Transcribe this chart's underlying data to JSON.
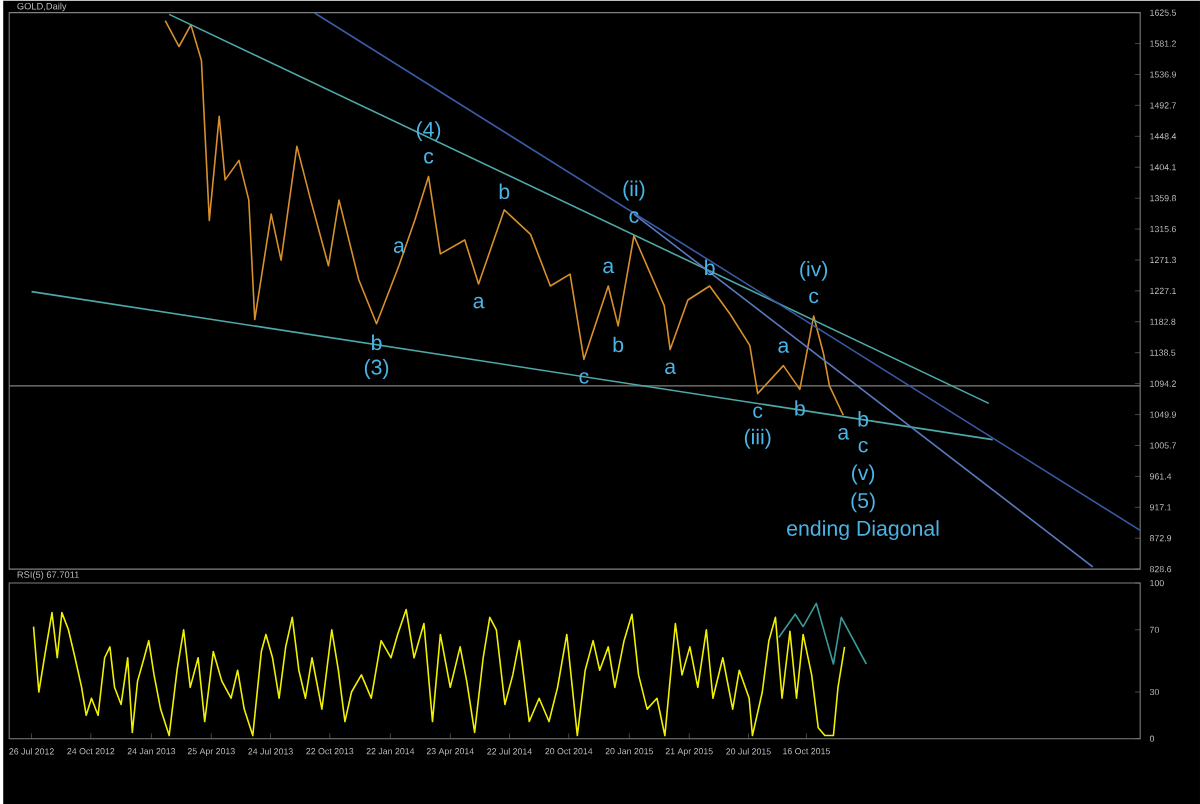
{
  "chart_data": [
    {
      "type": "line",
      "title": "GOLD,Daily",
      "tick_labels": "y",
      "xlim": [
        "2012-06-22",
        "2017-03-06"
      ],
      "ylim": [
        828.6,
        1625.5
      ],
      "yticks": [
        828.6,
        872.9,
        917.1,
        961.4,
        1005.7,
        1049.9,
        1094.2,
        1138.5,
        1182.8,
        1227.1,
        1271.3,
        1315.6,
        1359.8,
        1404.1,
        1448.4,
        1492.7,
        1536.9,
        1581.2,
        1625.5
      ],
      "series": [
        {
          "color": "#d8902c",
          "x": [
            "2013-02-14",
            "2013-03-07",
            "2013-03-25",
            "2013-04-10",
            "2013-04-22",
            "2013-05-07",
            "2013-05-16",
            "2013-06-06",
            "2013-06-21",
            "2013-06-30",
            "2013-07-25",
            "2013-08-09",
            "2013-09-02",
            "2013-09-23",
            "2013-10-20",
            "2013-11-05",
            "2013-12-05",
            "2014-01-01",
            "2014-02-04",
            "2014-02-28",
            "2014-03-21",
            "2014-04-08",
            "2014-05-15",
            "2014-06-05",
            "2014-07-14",
            "2014-08-23",
            "2014-09-22",
            "2014-10-22",
            "2014-11-12",
            "2014-12-19",
            "2015-01-03",
            "2015-01-27",
            "2015-03-14",
            "2015-03-23",
            "2015-04-19",
            "2015-05-22",
            "2015-06-22",
            "2015-07-22",
            "2015-08-03",
            "2015-09-11",
            "2015-10-06",
            "2015-10-27",
            "2015-11-11",
            "2015-11-20",
            "2015-12-11"
          ],
          "values": [
            1614,
            1577,
            1608,
            1557,
            1328,
            1477,
            1386,
            1414,
            1357,
            1186,
            1337,
            1271,
            1434,
            1357,
            1263,
            1357,
            1243,
            1180,
            1263,
            1328,
            1391,
            1280,
            1300,
            1237,
            1343,
            1308,
            1234,
            1251,
            1129,
            1234,
            1177,
            1306,
            1206,
            1143,
            1214,
            1234,
            1194,
            1149,
            1080,
            1120,
            1086,
            1191,
            1137,
            1091,
            1049
          ]
        },
        {
          "color": "#4fa8a8",
          "x": [
            "2013-02-20",
            "2016-07-19"
          ],
          "values": [
            1623,
            1066
          ]
        },
        {
          "color": "#4fa8a8",
          "x": [
            "2012-07-26",
            "2016-07-25"
          ],
          "values": [
            1226,
            1014
          ]
        },
        {
          "color": "#3a5aa8",
          "x": [
            "2013-09-29",
            "2017-03-06"
          ],
          "values": [
            1625,
            884
          ]
        },
        {
          "color": "#5a7ac0",
          "x": [
            "2015-01-27",
            "2016-12-24"
          ],
          "values": [
            1337,
            832
          ]
        }
      ],
      "ref_lines": [
        {
          "axis": "y",
          "value": 1091,
          "color": "#808080"
        }
      ],
      "annotations": [
        {
          "text": "c",
          "x": "2014-03-21",
          "y": 1391
        },
        {
          "text": "(4)",
          "x": "2014-03-21",
          "y": 1391
        },
        {
          "text": "b",
          "x": "2014-01-01",
          "y": 1180
        },
        {
          "text": "(3)",
          "x": "2014-01-01",
          "y": 1180
        },
        {
          "text": "a",
          "x": "2014-02-04",
          "y": 1263
        },
        {
          "text": "a",
          "x": "2014-06-05",
          "y": 1237
        },
        {
          "text": "b",
          "x": "2014-07-14",
          "y": 1343
        },
        {
          "text": "a",
          "x": "2014-12-19",
          "y": 1234
        },
        {
          "text": "c",
          "x": "2014-11-12",
          "y": 1129
        },
        {
          "text": "b",
          "x": "2015-01-03",
          "y": 1177
        },
        {
          "text": "c",
          "x": "2015-01-27",
          "y": 1306
        },
        {
          "text": "(ii)",
          "x": "2015-01-27",
          "y": 1306
        },
        {
          "text": "a",
          "x": "2015-03-23",
          "y": 1143
        },
        {
          "text": "b",
          "x": "2015-05-22",
          "y": 1234
        },
        {
          "text": "c",
          "x": "2015-08-03",
          "y": 1080
        },
        {
          "text": "(iii)",
          "x": "2015-08-03",
          "y": 1080
        },
        {
          "text": "a",
          "x": "2015-09-11",
          "y": 1120
        },
        {
          "text": "b",
          "x": "2015-10-06",
          "y": 1086
        },
        {
          "text": "c",
          "x": "2015-10-27",
          "y": 1191
        },
        {
          "text": "(iv)",
          "x": "2015-10-27",
          "y": 1191
        },
        {
          "text": "a",
          "x": "2015-12-11",
          "y": 1049
        },
        "b",
        "c",
        "(v)",
        "(5)",
        "ending Diagonal"
      ]
    },
    {
      "type": "line",
      "title": "RSI(5) 67.7011",
      "xlim": [
        "2012-06-22",
        "2017-03-06"
      ],
      "ylim": [
        0,
        100
      ],
      "yticks": [
        0,
        30,
        70,
        100
      ],
      "xticks": [
        {
          "value": "2012-07-26",
          "label": "26 Jul 2012"
        },
        {
          "value": "2012-10-24",
          "label": "24 Oct 2012"
        },
        {
          "value": "2013-01-24",
          "label": "24 Jan 2013"
        },
        {
          "value": "2013-04-25",
          "label": "25 Apr 2013"
        },
        {
          "value": "2013-07-24",
          "label": "24 Jul 2013"
        },
        {
          "value": "2013-10-22",
          "label": "22 Oct 2013"
        },
        {
          "value": "2014-01-22",
          "label": "22 Jan 2014"
        },
        {
          "value": "2014-04-23",
          "label": "23 Apr 2014"
        },
        {
          "value": "2014-07-22",
          "label": "22 Jul 2014"
        },
        {
          "value": "2014-10-20",
          "label": "20 Oct 2014"
        },
        {
          "value": "2015-01-20",
          "label": "20 Jan 2015"
        },
        {
          "value": "2015-04-21",
          "label": "21 Apr 2015"
        },
        {
          "value": "2015-07-20",
          "label": "20 Jul 2015"
        },
        {
          "value": "2015-10-16",
          "label": "16 Oct 2015"
        }
      ],
      "series": [
        {
          "color": "#f0f000",
          "x": [
            "2012-07-29",
            "2012-08-06",
            "2012-08-16",
            "2012-08-26",
            "2012-09-03",
            "2012-09-10",
            "2012-09-20",
            "2012-09-30",
            "2012-10-10",
            "2012-10-17",
            "2012-10-25",
            "2012-11-04",
            "2012-11-14",
            "2012-11-22",
            "2012-11-29",
            "2012-12-09",
            "2012-12-19",
            "2012-12-26",
            "2013-01-03",
            "2013-01-13",
            "2013-01-20",
            "2013-01-28",
            "2013-02-07",
            "2013-02-20",
            "2013-03-04",
            "2013-03-14",
            "2013-03-24",
            "2013-04-05",
            "2013-04-15",
            "2013-04-28",
            "2013-05-11",
            "2013-05-25",
            "2013-06-04",
            "2013-06-14",
            "2013-06-27",
            "2013-07-10",
            "2013-07-17",
            "2013-07-27",
            "2013-08-06",
            "2013-08-16",
            "2013-08-26",
            "2013-09-05",
            "2013-09-15",
            "2013-09-25",
            "2013-10-10",
            "2013-10-25",
            "2013-11-04",
            "2013-11-14",
            "2013-11-24",
            "2013-12-09",
            "2013-12-24",
            "2014-01-08",
            "2014-01-23",
            "2014-02-02",
            "2014-02-15",
            "2014-02-27",
            "2014-03-14",
            "2014-03-27",
            "2014-04-08",
            "2014-04-23",
            "2014-05-08",
            "2014-05-18",
            "2014-05-30",
            "2014-06-12",
            "2014-06-22",
            "2014-07-02",
            "2014-07-15",
            "2014-07-27",
            "2014-08-06",
            "2014-08-21",
            "2014-09-05",
            "2014-09-20",
            "2014-10-03",
            "2014-10-17",
            "2014-11-02",
            "2014-11-14",
            "2014-11-26",
            "2014-12-06",
            "2014-12-19",
            "2014-12-29",
            "2015-01-12",
            "2015-01-24",
            "2015-02-03",
            "2015-02-16",
            "2015-03-03",
            "2015-03-15",
            "2015-03-31",
            "2015-04-10",
            "2015-04-22",
            "2015-05-04",
            "2015-05-17",
            "2015-05-27",
            "2015-06-11",
            "2015-06-26",
            "2015-07-06",
            "2015-07-21",
            "2015-07-26",
            "2015-08-10",
            "2015-08-20",
            "2015-08-30",
            "2015-09-09",
            "2015-09-21",
            "2015-10-01",
            "2015-10-11",
            "2015-10-24",
            "2015-11-03",
            "2015-11-13",
            "2015-11-26",
            "2015-12-03",
            "2015-12-13"
          ],
          "values": [
            72,
            30,
            56,
            81,
            52,
            81,
            70,
            52,
            33,
            15,
            26,
            15,
            52,
            59,
            33,
            22,
            52,
            4,
            37,
            52,
            63,
            41,
            19,
            2,
            44,
            70,
            33,
            52,
            11,
            56,
            37,
            26,
            44,
            19,
            2,
            56,
            67,
            52,
            26,
            59,
            78,
            44,
            26,
            52,
            19,
            70,
            44,
            11,
            30,
            41,
            26,
            63,
            52,
            67,
            83,
            52,
            74,
            11,
            67,
            33,
            59,
            37,
            4,
            52,
            78,
            70,
            22,
            41,
            63,
            11,
            26,
            11,
            33,
            67,
            2,
            44,
            63,
            44,
            59,
            33,
            63,
            80,
            41,
            19,
            26,
            2,
            74,
            41,
            59,
            33,
            70,
            26,
            52,
            19,
            44,
            26,
            2,
            30,
            63,
            78,
            26,
            69,
            26,
            67,
            41,
            7,
            2,
            2,
            33,
            59
          ]
        },
        {
          "color": "#3a9a9a",
          "x": [
            "2015-09-04",
            "2015-09-29",
            "2015-10-11",
            "2015-10-31",
            "2015-11-26",
            "2015-12-08",
            "2016-01-15"
          ],
          "values": [
            65,
            80,
            72,
            87,
            48,
            78,
            48
          ]
        }
      ]
    }
  ]
}
